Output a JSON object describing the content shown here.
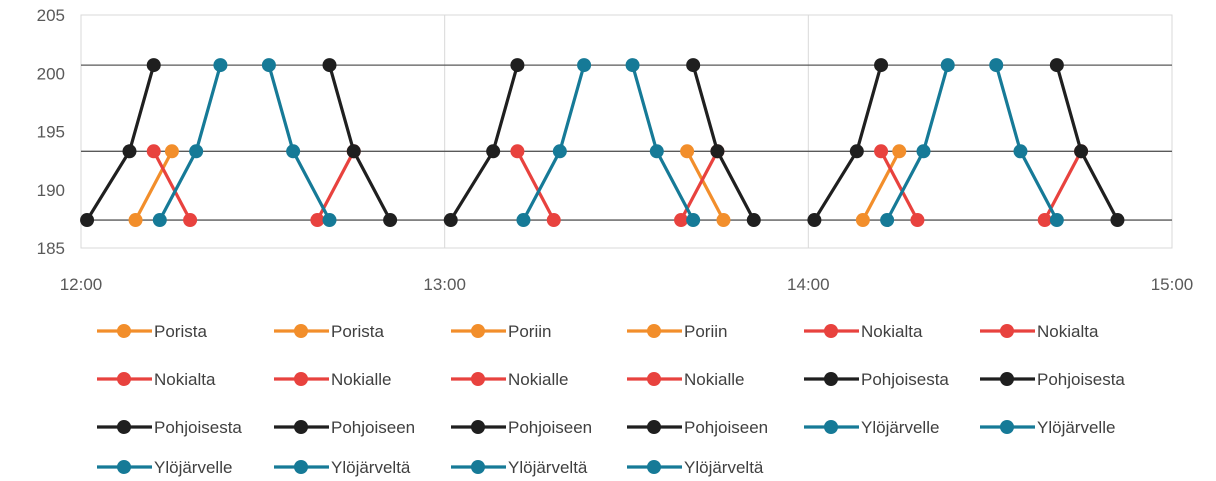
{
  "chart_data": {
    "type": "line",
    "title": "",
    "xlabel": "",
    "ylabel": "",
    "xlim": [
      "12:00",
      "15:00"
    ],
    "ylim": [
      185,
      205
    ],
    "x_ticks": [
      "12:00",
      "13:00",
      "14:00",
      "15:00"
    ],
    "y_ticks": [
      185,
      190,
      195,
      200,
      205
    ],
    "grid": {
      "vertical": true,
      "horizontal": false
    },
    "reference_lines": [
      187.4,
      193.3,
      200.7
    ],
    "legend_position": "bottom",
    "series": [
      {
        "name": "Porista",
        "color": "#F28E2B",
        "points": [
          {
            "x": "12:09",
            "y": 187.4
          },
          {
            "x": "12:15",
            "y": 193.3
          }
        ]
      },
      {
        "name": "Porista",
        "color": "#F28E2B",
        "points": [
          {
            "x": "14:09",
            "y": 187.4
          },
          {
            "x": "14:15",
            "y": 193.3
          }
        ]
      },
      {
        "name": "Poriin",
        "color": "#F28E2B",
        "points": [
          {
            "x": "13:40",
            "y": 193.3
          },
          {
            "x": "13:46",
            "y": 187.4
          }
        ]
      },
      {
        "name": "Poriin",
        "color": "#F28E2B",
        "points": []
      },
      {
        "name": "Nokialta",
        "color": "#E8423E",
        "points": [
          {
            "x": "12:12",
            "y": 193.3
          },
          {
            "x": "12:18",
            "y": 187.4
          }
        ]
      },
      {
        "name": "Nokialta",
        "color": "#E8423E",
        "points": [
          {
            "x": "13:12",
            "y": 193.3
          },
          {
            "x": "13:18",
            "y": 187.4
          }
        ]
      },
      {
        "name": "Nokialta",
        "color": "#E8423E",
        "points": [
          {
            "x": "14:12",
            "y": 193.3
          },
          {
            "x": "14:18",
            "y": 187.4
          }
        ]
      },
      {
        "name": "Nokialle",
        "color": "#E8423E",
        "points": [
          {
            "x": "12:39",
            "y": 187.4
          },
          {
            "x": "12:45",
            "y": 193.3
          }
        ]
      },
      {
        "name": "Nokialle",
        "color": "#E8423E",
        "points": [
          {
            "x": "13:39",
            "y": 187.4
          },
          {
            "x": "13:45",
            "y": 193.3
          }
        ]
      },
      {
        "name": "Nokialle",
        "color": "#E8423E",
        "points": [
          {
            "x": "14:39",
            "y": 187.4
          },
          {
            "x": "14:45",
            "y": 193.3
          }
        ]
      },
      {
        "name": "Pohjoisesta",
        "color": "#1F1F1F",
        "points": [
          {
            "x": "12:01",
            "y": 187.4
          },
          {
            "x": "12:08",
            "y": 193.3
          },
          {
            "x": "12:12",
            "y": 200.7
          }
        ]
      },
      {
        "name": "Pohjoisesta",
        "color": "#1F1F1F",
        "points": [
          {
            "x": "13:01",
            "y": 187.4
          },
          {
            "x": "13:08",
            "y": 193.3
          },
          {
            "x": "13:12",
            "y": 200.7
          }
        ]
      },
      {
        "name": "Pohjoisesta",
        "color": "#1F1F1F",
        "points": [
          {
            "x": "14:01",
            "y": 187.4
          },
          {
            "x": "14:08",
            "y": 193.3
          },
          {
            "x": "14:12",
            "y": 200.7
          }
        ]
      },
      {
        "name": "Pohjoiseen",
        "color": "#1F1F1F",
        "points": [
          {
            "x": "12:41",
            "y": 200.7
          },
          {
            "x": "12:45",
            "y": 193.3
          },
          {
            "x": "12:51",
            "y": 187.4
          }
        ]
      },
      {
        "name": "Pohjoiseen",
        "color": "#1F1F1F",
        "points": [
          {
            "x": "13:41",
            "y": 200.7
          },
          {
            "x": "13:45",
            "y": 193.3
          },
          {
            "x": "13:51",
            "y": 187.4
          }
        ]
      },
      {
        "name": "Pohjoiseen",
        "color": "#1F1F1F",
        "points": [
          {
            "x": "14:41",
            "y": 200.7
          },
          {
            "x": "14:45",
            "y": 193.3
          },
          {
            "x": "14:51",
            "y": 187.4
          }
        ]
      },
      {
        "name": "Ylöjärvelle",
        "color": "#167A97",
        "points": [
          {
            "x": "12:13",
            "y": 187.4
          },
          {
            "x": "12:19",
            "y": 193.3
          },
          {
            "x": "12:23",
            "y": 200.7
          }
        ]
      },
      {
        "name": "Ylöjärvelle",
        "color": "#167A97",
        "points": [
          {
            "x": "13:13",
            "y": 187.4
          },
          {
            "x": "13:19",
            "y": 193.3
          },
          {
            "x": "13:23",
            "y": 200.7
          }
        ]
      },
      {
        "name": "Ylöjärvelle",
        "color": "#167A97",
        "points": [
          {
            "x": "14:13",
            "y": 187.4
          },
          {
            "x": "14:19",
            "y": 193.3
          },
          {
            "x": "14:23",
            "y": 200.7
          }
        ]
      },
      {
        "name": "Ylöjärveltä",
        "color": "#167A97",
        "points": [
          {
            "x": "12:31",
            "y": 200.7
          },
          {
            "x": "12:35",
            "y": 193.3
          },
          {
            "x": "12:41",
            "y": 187.4
          }
        ]
      },
      {
        "name": "Ylöjärveltä",
        "color": "#167A97",
        "points": [
          {
            "x": "13:31",
            "y": 200.7
          },
          {
            "x": "13:35",
            "y": 193.3
          },
          {
            "x": "13:41",
            "y": 187.4
          }
        ]
      },
      {
        "name": "Ylöjärveltä",
        "color": "#167A97",
        "points": [
          {
            "x": "14:31",
            "y": 200.7
          },
          {
            "x": "14:35",
            "y": 193.3
          },
          {
            "x": "14:41",
            "y": 187.4
          }
        ]
      }
    ]
  }
}
